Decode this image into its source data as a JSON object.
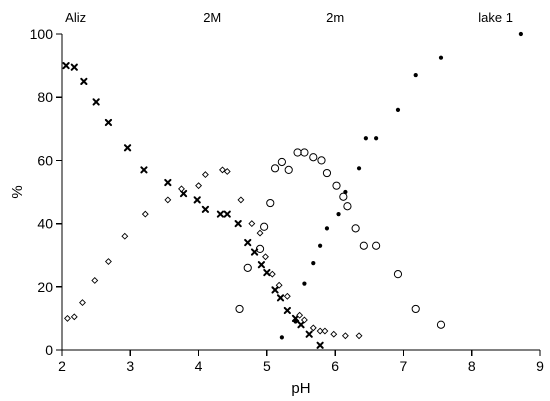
{
  "chart_data": {
    "type": "scatter",
    "xlabel": "pH",
    "ylabel": "%",
    "xlim": [
      2,
      9
    ],
    "ylim": [
      0,
      100
    ],
    "xticks": [
      "2",
      "3",
      "4",
      "5",
      "6",
      "7",
      "8",
      "9"
    ],
    "yticks": [
      "0",
      "20",
      "40",
      "60",
      "80",
      "100"
    ],
    "grid": false,
    "legend": "none",
    "series": [
      {
        "name": "Aliz",
        "marker": "cross",
        "color": "#000000",
        "label_x": 2.2,
        "points": [
          [
            2.06,
            90
          ],
          [
            2.18,
            89.5
          ],
          [
            2.32,
            85
          ],
          [
            2.5,
            78.5
          ],
          [
            2.68,
            72
          ],
          [
            2.96,
            64
          ],
          [
            3.2,
            57
          ],
          [
            3.55,
            53
          ],
          [
            3.78,
            49.5
          ],
          [
            3.98,
            47.5
          ],
          [
            4.1,
            44.5
          ],
          [
            4.32,
            43
          ],
          [
            4.42,
            43
          ],
          [
            4.58,
            40
          ],
          [
            4.72,
            34
          ],
          [
            4.82,
            31
          ],
          [
            4.92,
            27
          ],
          [
            5.0,
            24.5
          ],
          [
            5.12,
            19
          ],
          [
            5.2,
            16.5
          ],
          [
            5.3,
            12.5
          ],
          [
            5.42,
            10
          ],
          [
            5.5,
            8
          ],
          [
            5.62,
            5
          ],
          [
            5.78,
            1.5
          ]
        ]
      },
      {
        "name": "2M",
        "marker": "diamond",
        "color": "#000000",
        "label_x": 4.2,
        "points": [
          [
            2.08,
            10
          ],
          [
            2.18,
            10.5
          ],
          [
            2.3,
            15
          ],
          [
            2.48,
            22
          ],
          [
            2.68,
            28
          ],
          [
            2.92,
            36
          ],
          [
            3.22,
            43
          ],
          [
            3.55,
            47.5
          ],
          [
            3.75,
            51
          ],
          [
            4.0,
            52
          ],
          [
            4.1,
            55.5
          ],
          [
            4.35,
            57
          ],
          [
            4.42,
            56.5
          ],
          [
            4.62,
            47.5
          ],
          [
            4.78,
            40
          ],
          [
            4.9,
            37
          ],
          [
            4.98,
            29.5
          ],
          [
            5.08,
            24
          ],
          [
            5.18,
            20.5
          ],
          [
            5.3,
            17
          ],
          [
            5.48,
            11
          ],
          [
            5.55,
            9.5
          ],
          [
            5.68,
            7
          ],
          [
            5.78,
            6
          ],
          [
            5.85,
            6
          ],
          [
            5.98,
            5
          ],
          [
            6.15,
            4.5
          ],
          [
            6.35,
            4.5
          ]
        ]
      },
      {
        "name": "2m",
        "marker": "circle",
        "color": "#000000",
        "label_x": 6.0,
        "points": [
          [
            4.6,
            13
          ],
          [
            4.72,
            26
          ],
          [
            4.9,
            32
          ],
          [
            4.96,
            39
          ],
          [
            5.05,
            46.5
          ],
          [
            5.12,
            57.5
          ],
          [
            5.22,
            59.5
          ],
          [
            5.32,
            57
          ],
          [
            5.45,
            62.5
          ],
          [
            5.55,
            62.5
          ],
          [
            5.68,
            61
          ],
          [
            5.8,
            60
          ],
          [
            5.88,
            56
          ],
          [
            6.02,
            52
          ],
          [
            6.12,
            48.5
          ],
          [
            6.18,
            45.5
          ],
          [
            6.3,
            38.5
          ],
          [
            6.42,
            33
          ],
          [
            6.6,
            33
          ],
          [
            6.92,
            24
          ],
          [
            7.18,
            13
          ],
          [
            7.55,
            8
          ]
        ]
      },
      {
        "name": "lake 1",
        "marker": "dot",
        "color": "#000000",
        "label_x": 8.35,
        "points": [
          [
            5.22,
            4
          ],
          [
            5.42,
            9
          ],
          [
            5.55,
            21
          ],
          [
            5.68,
            27.5
          ],
          [
            5.78,
            33
          ],
          [
            5.88,
            38.5
          ],
          [
            6.05,
            43
          ],
          [
            6.15,
            50
          ],
          [
            6.35,
            57.5
          ],
          [
            6.45,
            67
          ],
          [
            6.6,
            67
          ],
          [
            6.92,
            76
          ],
          [
            7.18,
            87
          ],
          [
            7.55,
            92.5
          ],
          [
            8.72,
            100
          ]
        ]
      }
    ]
  }
}
